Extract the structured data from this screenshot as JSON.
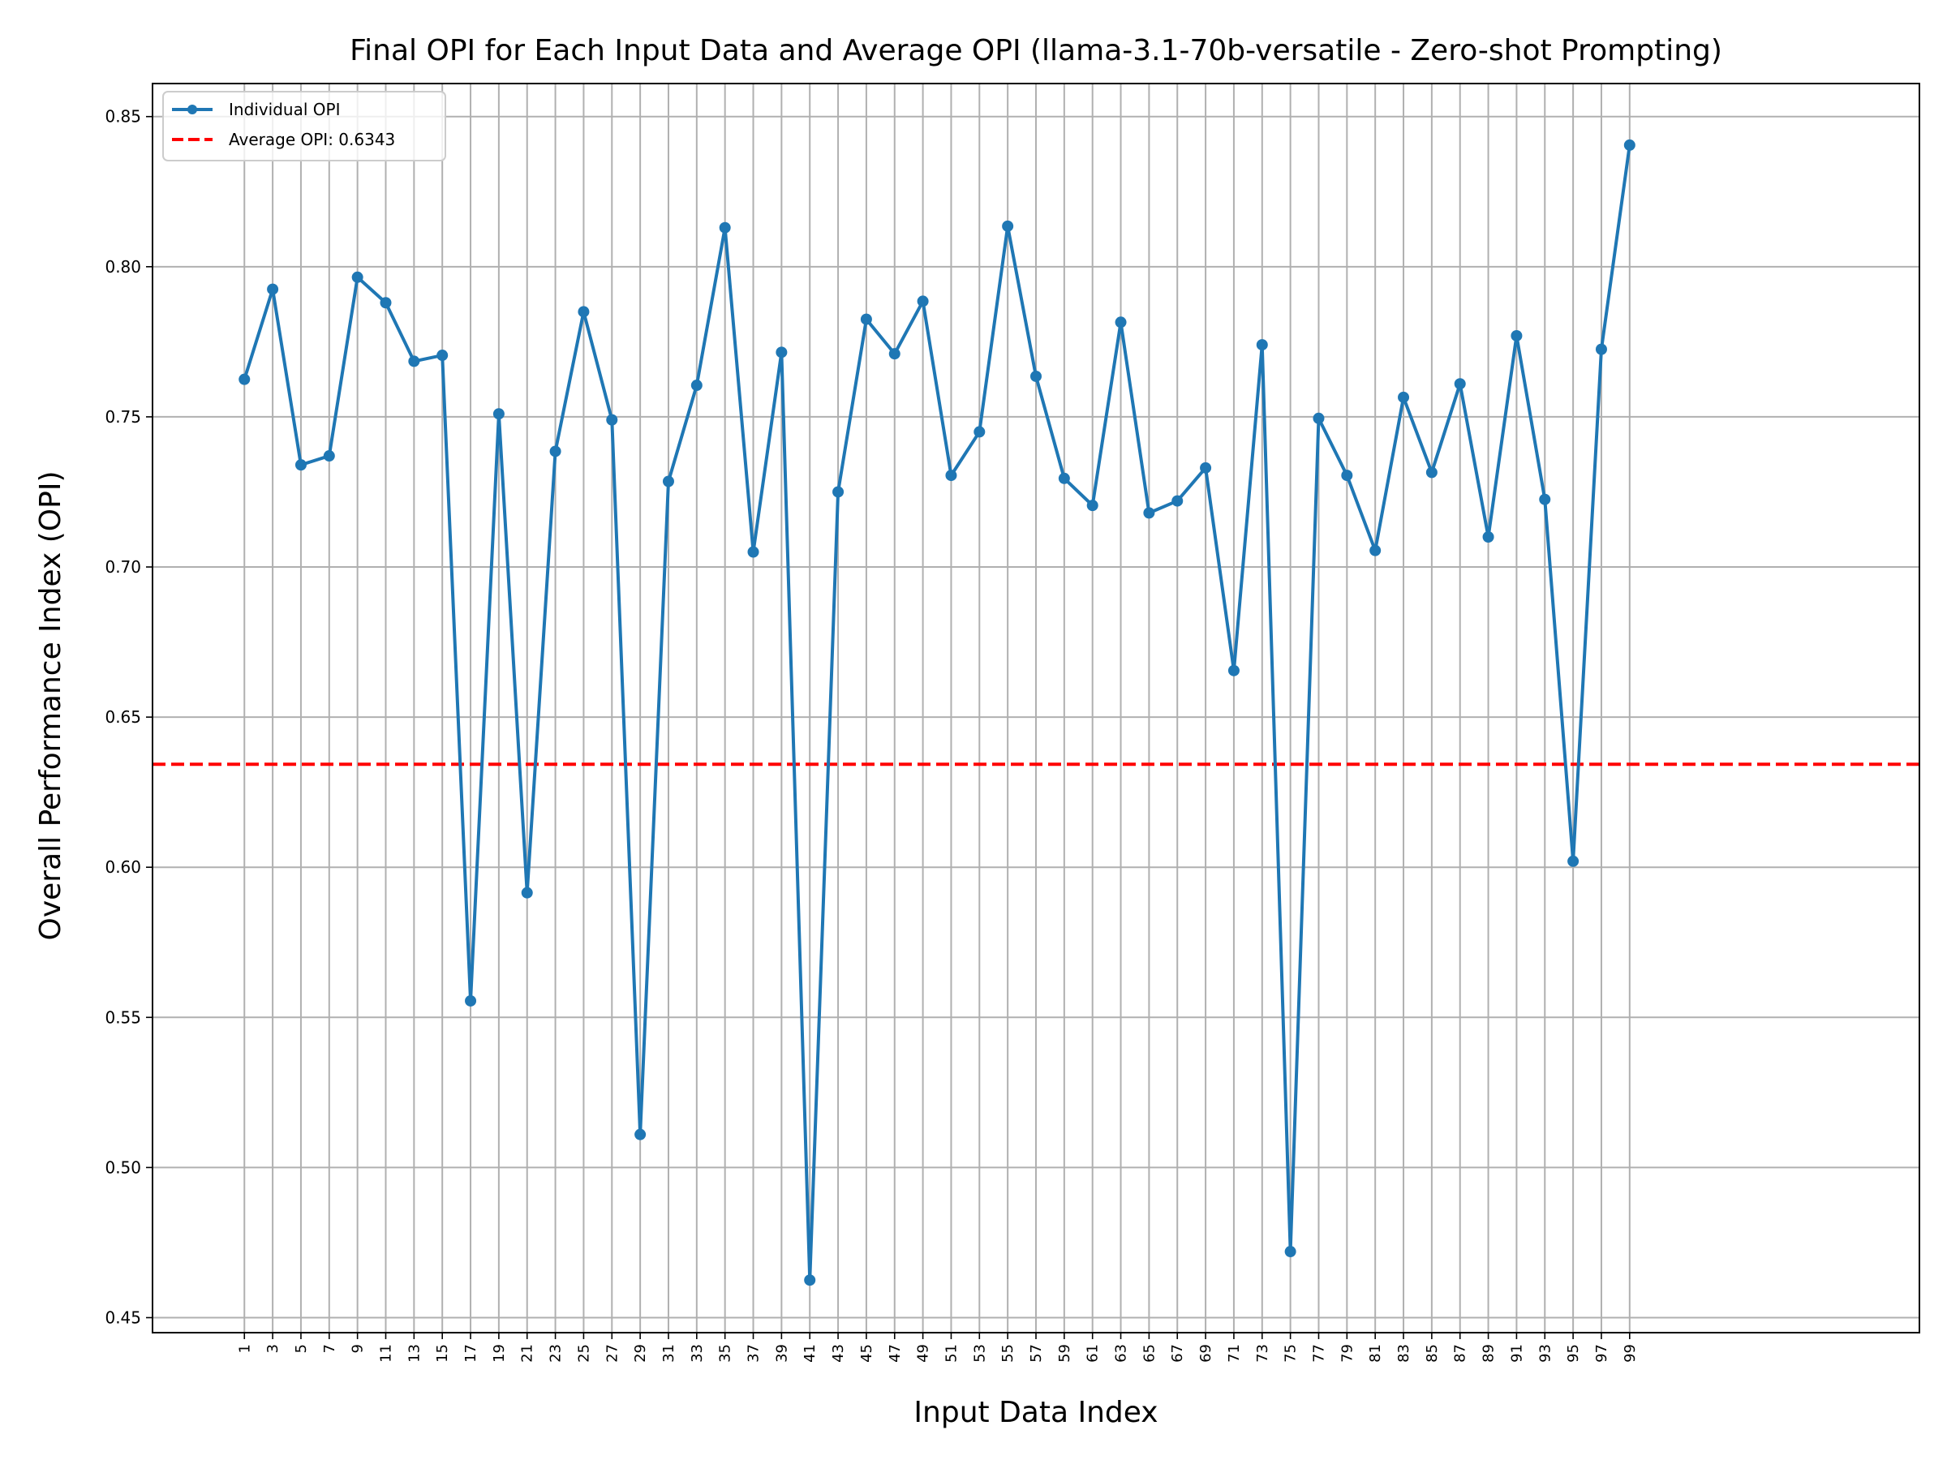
{
  "chart_data": {
    "type": "line",
    "title": "Final OPI for Each Input Data and Average OPI (llama-3.1-70b-versatile - Zero-shot Prompting)",
    "xlabel": "Input Data Index",
    "ylabel": "Overall Performance Index (OPI)",
    "x": [
      1,
      3,
      5,
      7,
      9,
      11,
      13,
      15,
      17,
      19,
      21,
      23,
      25,
      27,
      29,
      31,
      33,
      35,
      37,
      39,
      41,
      43,
      45,
      47,
      49,
      51,
      53,
      55,
      57,
      59,
      61,
      63,
      65,
      67,
      69,
      71,
      73,
      75,
      77,
      79,
      81,
      83,
      85,
      87,
      89,
      91,
      93,
      95,
      97,
      99
    ],
    "xticks": [
      "1",
      "3",
      "5",
      "7",
      "9",
      "11",
      "13",
      "15",
      "17",
      "19",
      "21",
      "23",
      "25",
      "27",
      "29",
      "31",
      "33",
      "35",
      "37",
      "39",
      "41",
      "43",
      "45",
      "47",
      "49",
      "51",
      "53",
      "55",
      "57",
      "59",
      "61",
      "63",
      "65",
      "67",
      "69",
      "71",
      "73",
      "75",
      "77",
      "79",
      "81",
      "83",
      "85",
      "87",
      "89",
      "91",
      "93",
      "95",
      "97",
      "99"
    ],
    "xlim": [
      -5.5,
      119.5
    ],
    "ylim": [
      0.445,
      0.861
    ],
    "yticks": [
      0.45,
      0.5,
      0.55,
      0.6,
      0.65,
      0.7,
      0.75,
      0.8,
      0.85
    ],
    "ytick_labels": [
      "0.45",
      "0.50",
      "0.55",
      "0.60",
      "0.65",
      "0.70",
      "0.75",
      "0.80",
      "0.85"
    ],
    "grid": true,
    "legend_position": "top-left",
    "series": [
      {
        "name": "Individual OPI",
        "color": "#1f77b4",
        "marker": "circle",
        "values": [
          0.7625,
          0.7925,
          0.734,
          0.737,
          0.7965,
          0.788,
          0.7685,
          0.7705,
          0.5555,
          0.751,
          0.5915,
          0.7385,
          0.785,
          0.749,
          0.511,
          0.7285,
          0.7605,
          0.813,
          0.705,
          0.7715,
          0.4625,
          0.725,
          0.7825,
          0.771,
          0.7885,
          0.7305,
          0.745,
          0.8135,
          0.7635,
          0.7295,
          0.7205,
          0.7815,
          0.718,
          0.722,
          0.733,
          0.6655,
          0.774,
          0.472,
          0.7495,
          0.7305,
          0.7055,
          0.7565,
          0.7315,
          0.761,
          0.71,
          0.777,
          0.7225,
          0.602,
          0.7725,
          0.8405
        ]
      }
    ],
    "reference_line": {
      "name": "Average OPI: 0.6343",
      "value": 0.6343,
      "color": "#ff0000",
      "style": "dashed"
    }
  }
}
